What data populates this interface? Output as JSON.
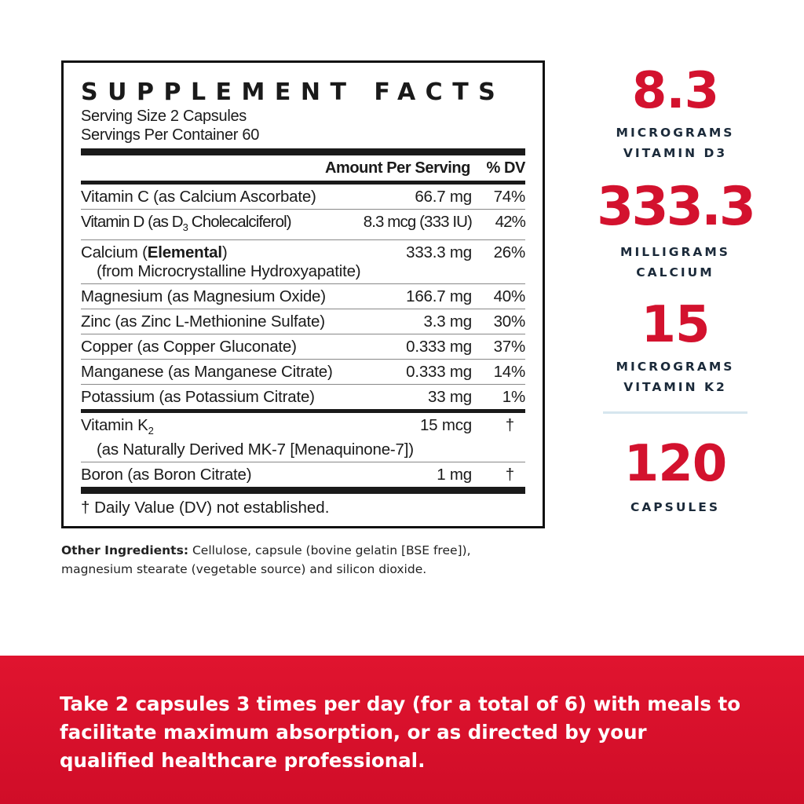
{
  "label": {
    "title": "SUPPLEMENT FACTS",
    "serving_size": "Serving Size 2 Capsules",
    "servings_per_container": "Servings Per Container 60",
    "header_amount": "Amount Per Serving",
    "header_dv": "% DV",
    "rows": [
      {
        "name": "Vitamin C (as Calcium Ascorbate)",
        "amount": "66.7 mg",
        "dv": "74%"
      },
      {
        "name_pre": "Vitamin D (as D",
        "name_sub": "3",
        "name_post": " Cholecalciferol)",
        "amount": "8.3 mcg (333 IU)",
        "dv": "42%"
      },
      {
        "name_pre": "Calcium (",
        "name_bold": "Elemental",
        "name_post": ")",
        "name_line2": "(from Microcrystalline Hydroxyapatite)",
        "amount": "333.3 mg",
        "dv": "26%"
      },
      {
        "name": "Magnesium (as Magnesium Oxide)",
        "amount": "166.7 mg",
        "dv": "40%"
      },
      {
        "name": "Zinc (as Zinc L-Methionine Sulfate)",
        "amount": "3.3 mg",
        "dv": "30%"
      },
      {
        "name": "Copper (as Copper Gluconate)",
        "amount": "0.333 mg",
        "dv": "37%"
      },
      {
        "name": "Manganese (as Manganese Citrate)",
        "amount": "0.333 mg",
        "dv": "14%"
      },
      {
        "name": "Potassium (as Potassium Citrate)",
        "amount": "33 mg",
        "dv": "1%"
      }
    ],
    "rows2": [
      {
        "name_pre": "Vitamin K",
        "name_sub": "2",
        "name_line2": "(as Naturally Derived MK-7 [Menaquinone-7])",
        "amount": "15 mcg",
        "dv": "†"
      },
      {
        "name": "Boron (as Boron Citrate)",
        "amount": "1 mg",
        "dv": "†"
      }
    ],
    "footnote": "† Daily Value (DV) not established."
  },
  "other_ingredients": {
    "label": "Other Ingredients:",
    "text": " Cellulose, capsule (bovine gelatin [BSE free]), magnesium stearate (vegetable source) and silicon dioxide."
  },
  "stats": [
    {
      "value": "8.3",
      "line1": "MICROGRAMS",
      "line2": "VITAMIN D3"
    },
    {
      "value": "333.3",
      "line1": "MILLIGRAMS",
      "line2": "CALCIUM"
    },
    {
      "value": "15",
      "line1": "MICROGRAMS",
      "line2": "VITAMIN K2"
    },
    {
      "value": "120",
      "line1": "CAPSULES",
      "line2": ""
    }
  ],
  "directions": "Take 2 capsules 3 times per day (for a total of 6) with meals to facilitate maximum absorption, or as directed by your qualified healthcare professional.",
  "colors": {
    "accent_red": "#d3122e",
    "navy": "#1b2a3a"
  }
}
